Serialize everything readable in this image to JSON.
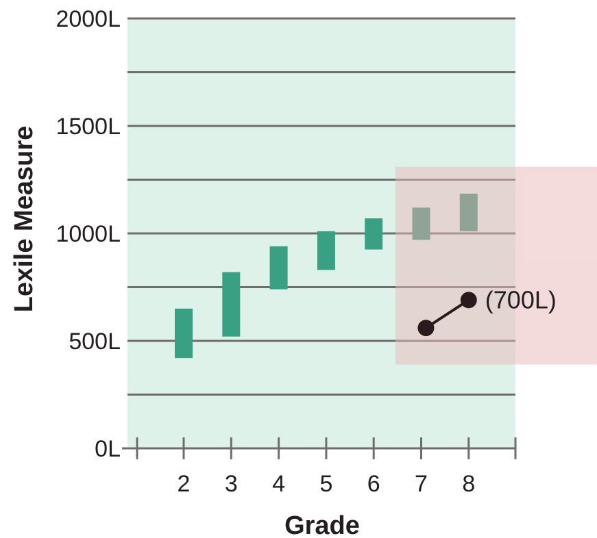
{
  "chart_data": {
    "type": "bar",
    "subtype": "floating-range",
    "xlabel": "Grade",
    "ylabel": "Lexile Measure",
    "categories": [
      "2",
      "3",
      "4",
      "5",
      "6",
      "7",
      "8"
    ],
    "ranges": [
      {
        "category": "2",
        "low": 420,
        "high": 650
      },
      {
        "category": "3",
        "low": 520,
        "high": 820
      },
      {
        "category": "4",
        "low": 740,
        "high": 940
      },
      {
        "category": "5",
        "low": 830,
        "high": 1010
      },
      {
        "category": "6",
        "low": 925,
        "high": 1070
      },
      {
        "category": "7",
        "low": 970,
        "high": 1120
      },
      {
        "category": "8",
        "low": 1010,
        "high": 1185
      }
    ],
    "ylim": [
      0,
      2000
    ],
    "y_ticks": [
      {
        "value": 0,
        "label": "0L"
      },
      {
        "value": 500,
        "label": "500L"
      },
      {
        "value": 1000,
        "label": "1000L"
      },
      {
        "value": 1500,
        "label": "1500L"
      },
      {
        "value": 2000,
        "label": "2000L"
      }
    ],
    "gridlines": [
      250,
      500,
      750,
      1000,
      1250,
      1500,
      1750,
      2000
    ],
    "grid": true,
    "highlight": {
      "from_grade": "6.5",
      "to_grade": "beyond 8",
      "y_from": 390,
      "y_to": 1310
    },
    "point_line": {
      "points": [
        {
          "grade": 7.1,
          "value": 560
        },
        {
          "grade": 8.0,
          "value": 690
        }
      ],
      "label": "(700L)"
    },
    "colors": {
      "plot_bg": "#dff2ea",
      "bar": "#3aa084",
      "bar_in_highlight": "#3a8f74",
      "highlight": "#e8b8b8",
      "gridline": "#6d6d6d",
      "point": "#2a1a1d",
      "text": "#231f20"
    }
  }
}
